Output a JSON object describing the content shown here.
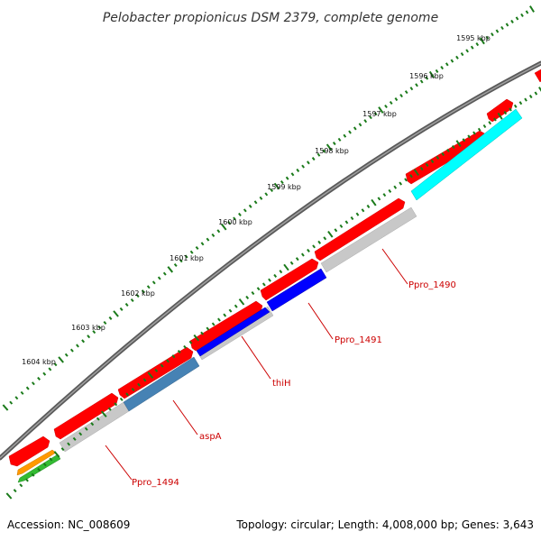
{
  "title": "Pelobacter propionicus DSM 2379, complete genome",
  "footer": {
    "accession": "Accession: NC_008609",
    "stats": "Topology: circular; Length: 4,008,000 bp; Genes: 3,643"
  },
  "ruler": [
    "1595 kbp",
    "1596 kbp",
    "1597 kbp",
    "1598 kbp",
    "1599 kbp",
    "1600 kbp",
    "1601 kbp",
    "1602 kbp",
    "1603 kbp",
    "1604 kbp"
  ],
  "gene_labels": [
    "Ppro_1490",
    "Ppro_1491",
    "thiH",
    "aspA",
    "Ppro_1494"
  ],
  "colors": {
    "backbone": "#808080",
    "tick": "#1a7a1a",
    "cds": "#ff0000",
    "gene_label": "#cc0000",
    "cyan": "#00ffff",
    "blue": "#0000ff",
    "steelblue": "#4682b4",
    "gray": "#c8c8c8",
    "orange": "#ff9900",
    "green": "#33bb33"
  }
}
